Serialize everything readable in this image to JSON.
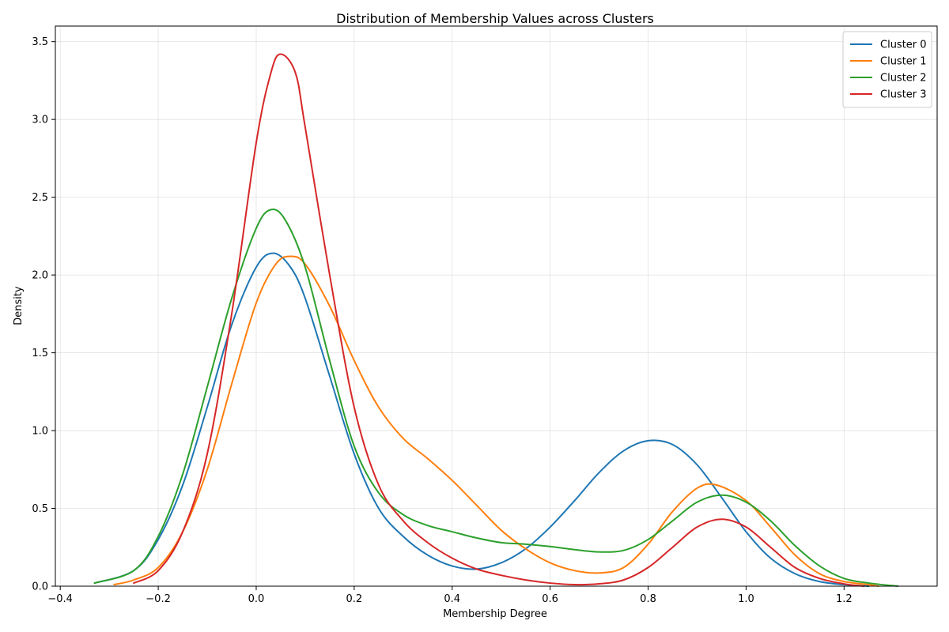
{
  "chart_data": {
    "type": "line",
    "title": "Distribution of Membership Values across Clusters",
    "xlabel": "Membership Degree",
    "ylabel": "Density",
    "xlim": [
      -0.41,
      1.39
    ],
    "ylim": [
      0,
      3.6
    ],
    "xticks": [
      -0.4,
      -0.2,
      0.0,
      0.2,
      0.4,
      0.6,
      0.8,
      1.0,
      1.2
    ],
    "xtick_labels": [
      "−0.4",
      "−0.2",
      "0.0",
      "0.2",
      "0.4",
      "0.6",
      "0.8",
      "1.0",
      "1.2"
    ],
    "yticks": [
      0.0,
      0.5,
      1.0,
      1.5,
      2.0,
      2.5,
      3.0,
      3.5
    ],
    "ytick_labels": [
      "0.0",
      "0.5",
      "1.0",
      "1.5",
      "2.0",
      "2.5",
      "3.0",
      "3.5"
    ],
    "grid": true,
    "legend_position": "top-right",
    "series": [
      {
        "name": "Cluster 0",
        "color": "#1f77b4",
        "points": [
          [
            -0.33,
            0.02
          ],
          [
            -0.25,
            0.1
          ],
          [
            -0.2,
            0.3
          ],
          [
            -0.15,
            0.65
          ],
          [
            -0.1,
            1.15
          ],
          [
            -0.05,
            1.68
          ],
          [
            0.0,
            2.05
          ],
          [
            0.035,
            2.14
          ],
          [
            0.07,
            2.05
          ],
          [
            0.1,
            1.85
          ],
          [
            0.15,
            1.35
          ],
          [
            0.2,
            0.85
          ],
          [
            0.25,
            0.5
          ],
          [
            0.3,
            0.32
          ],
          [
            0.35,
            0.2
          ],
          [
            0.4,
            0.13
          ],
          [
            0.45,
            0.11
          ],
          [
            0.5,
            0.15
          ],
          [
            0.55,
            0.24
          ],
          [
            0.6,
            0.38
          ],
          [
            0.65,
            0.55
          ],
          [
            0.7,
            0.73
          ],
          [
            0.75,
            0.87
          ],
          [
            0.8,
            0.935
          ],
          [
            0.85,
            0.91
          ],
          [
            0.9,
            0.78
          ],
          [
            0.95,
            0.57
          ],
          [
            1.0,
            0.35
          ],
          [
            1.05,
            0.18
          ],
          [
            1.1,
            0.08
          ],
          [
            1.15,
            0.03
          ],
          [
            1.2,
            0.01
          ],
          [
            1.25,
            0.0
          ]
        ]
      },
      {
        "name": "Cluster 1",
        "color": "#ff7f0e",
        "points": [
          [
            -0.29,
            0.01
          ],
          [
            -0.25,
            0.04
          ],
          [
            -0.2,
            0.12
          ],
          [
            -0.15,
            0.35
          ],
          [
            -0.1,
            0.75
          ],
          [
            -0.05,
            1.3
          ],
          [
            0.0,
            1.82
          ],
          [
            0.04,
            2.07
          ],
          [
            0.07,
            2.12
          ],
          [
            0.1,
            2.07
          ],
          [
            0.15,
            1.8
          ],
          [
            0.2,
            1.45
          ],
          [
            0.25,
            1.15
          ],
          [
            0.3,
            0.95
          ],
          [
            0.35,
            0.82
          ],
          [
            0.4,
            0.68
          ],
          [
            0.45,
            0.52
          ],
          [
            0.5,
            0.36
          ],
          [
            0.55,
            0.24
          ],
          [
            0.6,
            0.15
          ],
          [
            0.65,
            0.1
          ],
          [
            0.7,
            0.085
          ],
          [
            0.75,
            0.12
          ],
          [
            0.8,
            0.27
          ],
          [
            0.85,
            0.48
          ],
          [
            0.9,
            0.63
          ],
          [
            0.94,
            0.65
          ],
          [
            1.0,
            0.55
          ],
          [
            1.05,
            0.38
          ],
          [
            1.1,
            0.2
          ],
          [
            1.15,
            0.08
          ],
          [
            1.2,
            0.03
          ],
          [
            1.25,
            0.01
          ],
          [
            1.27,
            0.0
          ]
        ]
      },
      {
        "name": "Cluster 2",
        "color": "#2ca02c",
        "points": [
          [
            -0.33,
            0.02
          ],
          [
            -0.25,
            0.1
          ],
          [
            -0.2,
            0.32
          ],
          [
            -0.15,
            0.72
          ],
          [
            -0.1,
            1.28
          ],
          [
            -0.05,
            1.85
          ],
          [
            0.0,
            2.3
          ],
          [
            0.03,
            2.42
          ],
          [
            0.06,
            2.35
          ],
          [
            0.1,
            2.05
          ],
          [
            0.15,
            1.45
          ],
          [
            0.2,
            0.9
          ],
          [
            0.25,
            0.6
          ],
          [
            0.3,
            0.46
          ],
          [
            0.35,
            0.39
          ],
          [
            0.4,
            0.35
          ],
          [
            0.45,
            0.31
          ],
          [
            0.5,
            0.28
          ],
          [
            0.55,
            0.27
          ],
          [
            0.6,
            0.255
          ],
          [
            0.65,
            0.235
          ],
          [
            0.7,
            0.22
          ],
          [
            0.75,
            0.23
          ],
          [
            0.8,
            0.3
          ],
          [
            0.85,
            0.42
          ],
          [
            0.9,
            0.54
          ],
          [
            0.95,
            0.585
          ],
          [
            1.0,
            0.54
          ],
          [
            1.05,
            0.42
          ],
          [
            1.1,
            0.26
          ],
          [
            1.15,
            0.13
          ],
          [
            1.2,
            0.05
          ],
          [
            1.25,
            0.02
          ],
          [
            1.31,
            0.0
          ]
        ]
      },
      {
        "name": "Cluster 3",
        "color": "#d62728",
        "points": [
          [
            -0.25,
            0.02
          ],
          [
            -0.2,
            0.1
          ],
          [
            -0.15,
            0.35
          ],
          [
            -0.1,
            0.85
          ],
          [
            -0.05,
            1.75
          ],
          [
            0.0,
            2.85
          ],
          [
            0.03,
            3.3
          ],
          [
            0.05,
            3.42
          ],
          [
            0.08,
            3.3
          ],
          [
            0.1,
            2.95
          ],
          [
            0.15,
            2.0
          ],
          [
            0.2,
            1.15
          ],
          [
            0.25,
            0.65
          ],
          [
            0.3,
            0.42
          ],
          [
            0.35,
            0.28
          ],
          [
            0.4,
            0.18
          ],
          [
            0.45,
            0.11
          ],
          [
            0.5,
            0.07
          ],
          [
            0.55,
            0.04
          ],
          [
            0.6,
            0.02
          ],
          [
            0.65,
            0.01
          ],
          [
            0.7,
            0.015
          ],
          [
            0.75,
            0.04
          ],
          [
            0.8,
            0.12
          ],
          [
            0.85,
            0.25
          ],
          [
            0.9,
            0.38
          ],
          [
            0.95,
            0.43
          ],
          [
            1.0,
            0.38
          ],
          [
            1.05,
            0.25
          ],
          [
            1.1,
            0.12
          ],
          [
            1.15,
            0.05
          ],
          [
            1.2,
            0.015
          ],
          [
            1.24,
            0.0
          ]
        ]
      }
    ]
  }
}
